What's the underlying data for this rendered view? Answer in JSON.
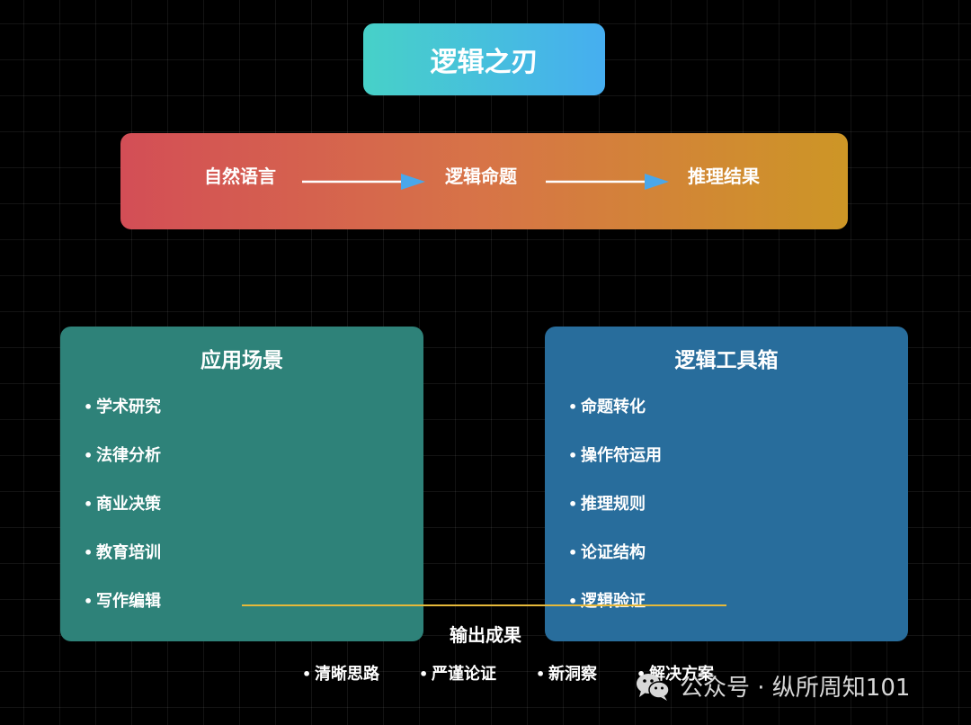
{
  "title": "逻辑之刃",
  "flow": {
    "steps": [
      "自然语言",
      "逻辑命题",
      "推理结果"
    ],
    "arrow_color": "#4aa7ea"
  },
  "left_panel": {
    "title": "应用场景",
    "items": [
      "学术研究",
      "法律分析",
      "商业决策",
      "教育培训",
      "写作编辑"
    ],
    "color": "#2e8279"
  },
  "right_panel": {
    "title": "逻辑工具箱",
    "items": [
      "命题转化",
      "操作符运用",
      "推理规则",
      "论证结构",
      "逻辑验证"
    ],
    "color": "#286d9c"
  },
  "output": {
    "title": "输出成果",
    "items": [
      "清晰思路",
      "严谨论证",
      "新洞察",
      "解决方案"
    ]
  },
  "watermark": {
    "text": "公众号 · 纵所周知101",
    "icon": "wechat-icon"
  },
  "bullet": "•"
}
